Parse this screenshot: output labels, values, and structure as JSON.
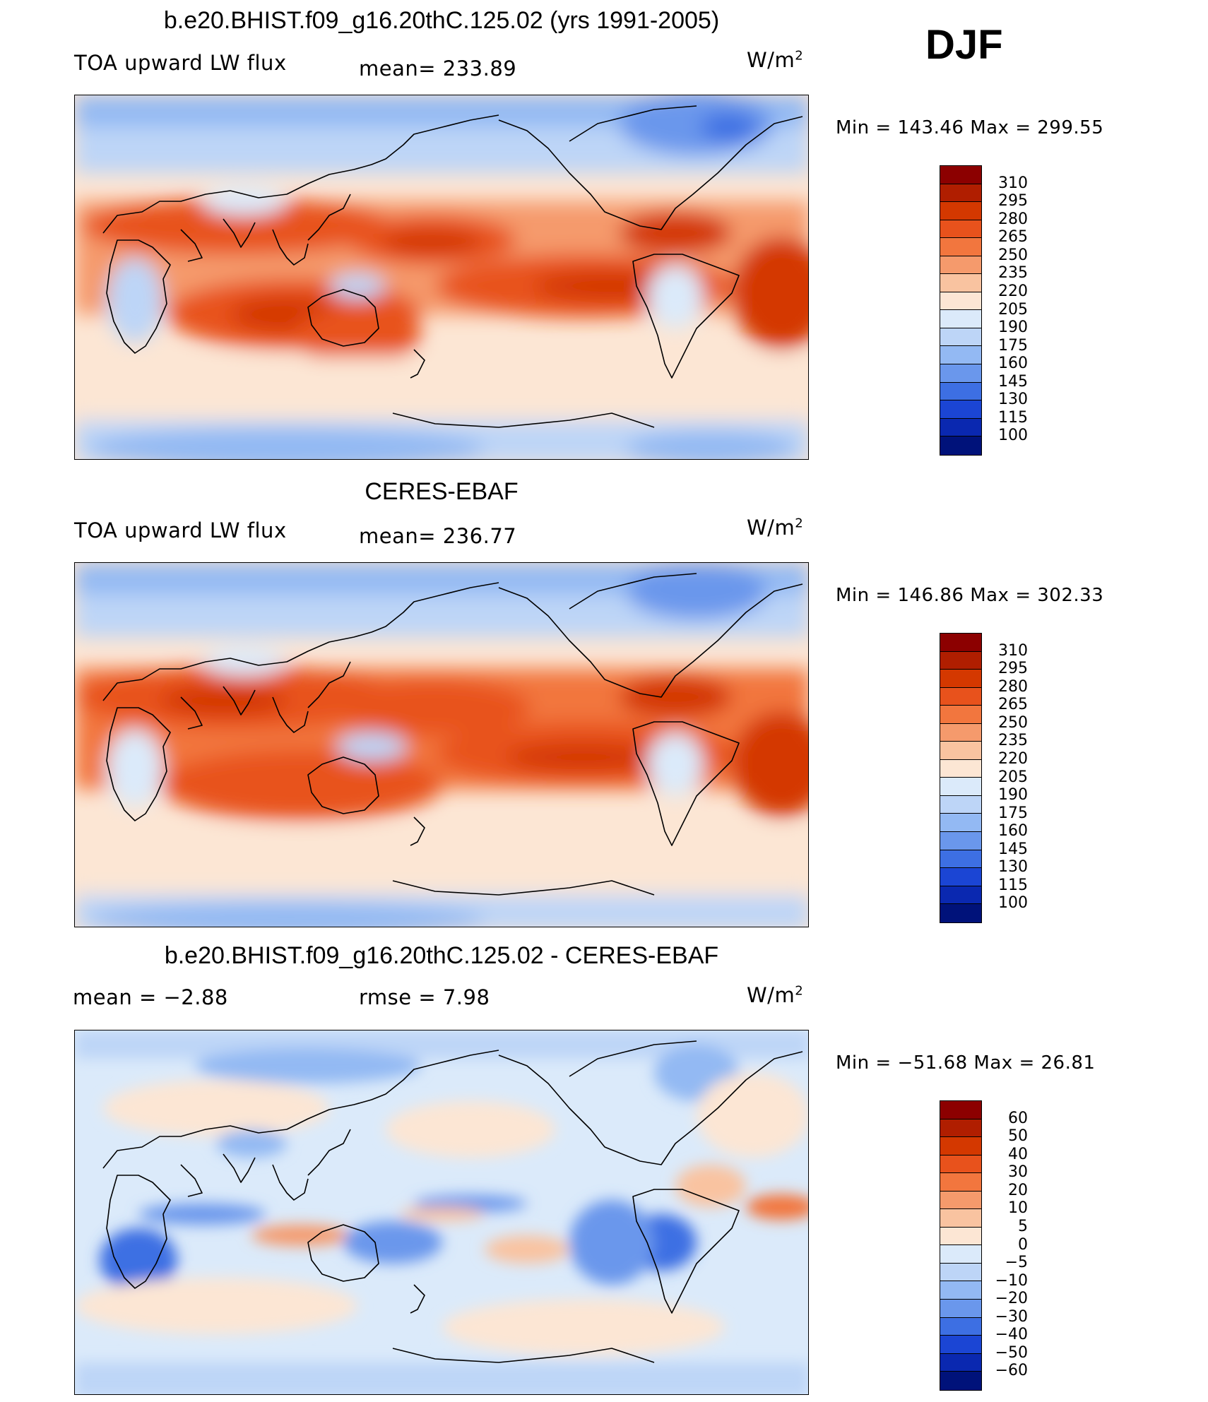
{
  "season": "DJF",
  "panels": [
    {
      "title": "b.e20.BHIST.f09_g16.20thC.125.02 (yrs 1991-2005)",
      "left_label": "TOA upward LW flux",
      "stat_label": "mean= 233.89",
      "units": "W/m",
      "units_exp": "2",
      "minmax": "Min = 143.46 Max = 299.55",
      "colorbar": {
        "levels": [
          "310",
          "295",
          "280",
          "265",
          "250",
          "235",
          "220",
          "205",
          "190",
          "175",
          "160",
          "145",
          "130",
          "115",
          "100"
        ],
        "colors": [
          "#8c0000",
          "#b01e00",
          "#d43800",
          "#e8521c",
          "#f2763e",
          "#f59a6c",
          "#f9c3a0",
          "#fce6d4",
          "#dbeafa",
          "#bdd5f7",
          "#93b9f3",
          "#6a97ec",
          "#3d6fe3",
          "#1b45d4",
          "#0a28b0",
          "#00127a"
        ]
      }
    },
    {
      "title": "CERES-EBAF",
      "left_label": "TOA upward LW flux",
      "stat_label": "mean= 236.77",
      "units": "W/m",
      "units_exp": "2",
      "minmax": "Min = 146.86 Max = 302.33",
      "colorbar": {
        "levels": [
          "310",
          "295",
          "280",
          "265",
          "250",
          "235",
          "220",
          "205",
          "190",
          "175",
          "160",
          "145",
          "130",
          "115",
          "100"
        ],
        "colors": [
          "#8c0000",
          "#b01e00",
          "#d43800",
          "#e8521c",
          "#f2763e",
          "#f59a6c",
          "#f9c3a0",
          "#fce6d4",
          "#dbeafa",
          "#bdd5f7",
          "#93b9f3",
          "#6a97ec",
          "#3d6fe3",
          "#1b45d4",
          "#0a28b0",
          "#00127a"
        ]
      }
    },
    {
      "title": "b.e20.BHIST.f09_g16.20thC.125.02 - CERES-EBAF",
      "left_label": "mean =   −2.88",
      "stat_label": "rmse =    7.98",
      "units": "W/m",
      "units_exp": "2",
      "minmax": "Min = −51.68 Max =  26.81",
      "colorbar": {
        "levels": [
          "60",
          "50",
          "40",
          "30",
          "20",
          "10",
          "5",
          "0",
          "−5",
          "−10",
          "−20",
          "−30",
          "−40",
          "−50",
          "−60"
        ],
        "colors": [
          "#8c0000",
          "#b01e00",
          "#d43800",
          "#e8521c",
          "#f2763e",
          "#f59a6c",
          "#f9c3a0",
          "#fce6d4",
          "#dbeafa",
          "#bdd5f7",
          "#93b9f3",
          "#6a97ec",
          "#3d6fe3",
          "#1b45d4",
          "#0a28b0",
          "#00127a"
        ]
      }
    }
  ]
}
